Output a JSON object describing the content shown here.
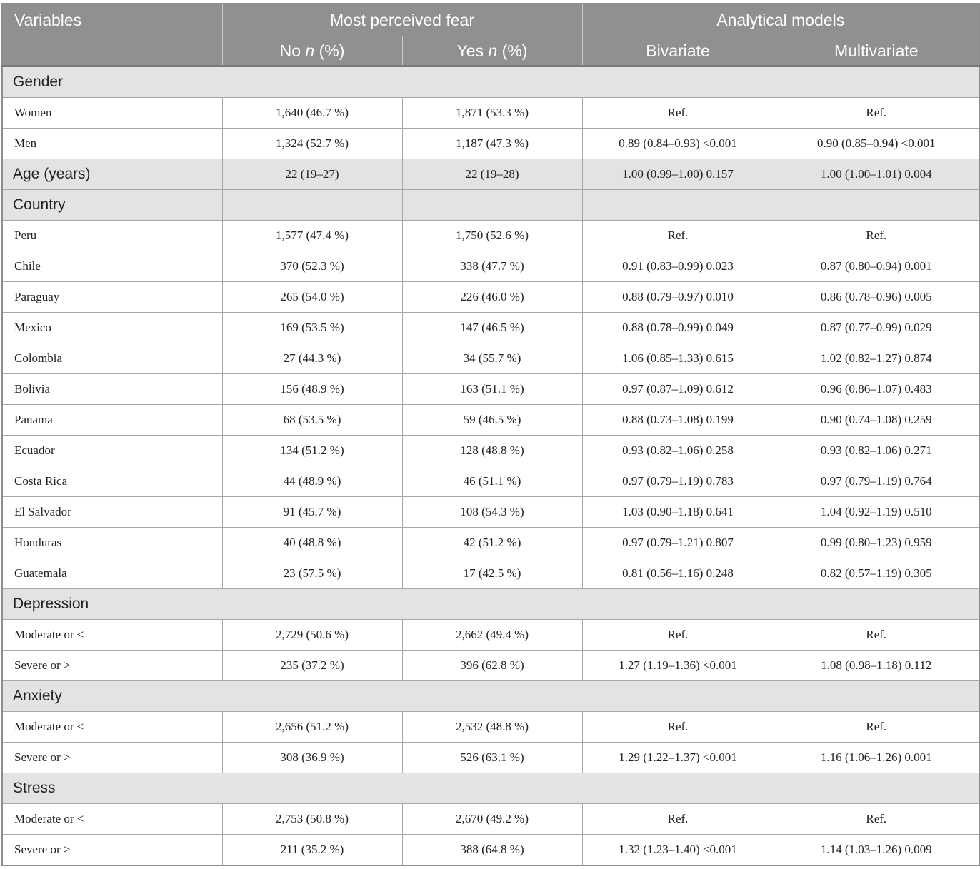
{
  "header": {
    "variables": "Variables",
    "most_perceived_fear": "Most perceived fear",
    "analytical_models": "Analytical models",
    "no_prefix": "No ",
    "yes_prefix": "Yes ",
    "n_italic": "n",
    "pct_suffix": " (%)",
    "bivariate": "Bivariate",
    "multivariate": "Multivariate"
  },
  "sections": {
    "gender": {
      "title": "Gender",
      "rows": [
        {
          "label": "Women",
          "no": "1,640 (46.7 %)",
          "yes": "1,871 (53.3 %)",
          "bivariate": "Ref.",
          "multivariate": "Ref."
        },
        {
          "label": "Men",
          "no": "1,324 (52.7 %)",
          "yes": "1,187 (47.3 %)",
          "bivariate": "0.89 (0.84–0.93) <0.001",
          "multivariate": "0.90 (0.85–0.94) <0.001"
        }
      ]
    },
    "age": {
      "label": "Age (years)",
      "no": "22 (19–27)",
      "yes": "22 (19–28)",
      "bivariate": "1.00 (0.99–1.00) 0.157",
      "multivariate": "1.00 (1.00–1.01) 0.004"
    },
    "country": {
      "title": "Country",
      "rows": [
        {
          "label": "Peru",
          "no": "1,577 (47.4 %)",
          "yes": "1,750 (52.6 %)",
          "bivariate": "Ref.",
          "multivariate": "Ref."
        },
        {
          "label": "Chile",
          "no": "370 (52.3 %)",
          "yes": "338 (47.7 %)",
          "bivariate": "0.91 (0.83–0.99) 0.023",
          "multivariate": "0.87 (0.80–0.94) 0.001"
        },
        {
          "label": "Paraguay",
          "no": "265 (54.0 %)",
          "yes": "226 (46.0 %)",
          "bivariate": "0.88 (0.79–0.97) 0.010",
          "multivariate": "0.86 (0.78–0.96) 0.005"
        },
        {
          "label": "Mexico",
          "no": "169 (53.5 %)",
          "yes": "147 (46.5 %)",
          "bivariate": "0.88 (0.78–0.99) 0.049",
          "multivariate": "0.87 (0.77–0.99) 0.029"
        },
        {
          "label": "Colombia",
          "no": "27 (44.3 %)",
          "yes": "34 (55.7 %)",
          "bivariate": "1.06 (0.85–1.33) 0.615",
          "multivariate": "1.02 (0.82–1.27) 0.874"
        },
        {
          "label": "Bolivia",
          "no": "156 (48.9 %)",
          "yes": "163 (51.1 %)",
          "bivariate": "0.97 (0.87–1.09) 0.612",
          "multivariate": "0.96 (0.86–1.07) 0.483"
        },
        {
          "label": "Panama",
          "no": "68 (53.5 %)",
          "yes": "59 (46.5 %)",
          "bivariate": "0.88 (0.73–1.08) 0.199",
          "multivariate": "0.90 (0.74–1.08) 0.259"
        },
        {
          "label": "Ecuador",
          "no": "134 (51.2 %)",
          "yes": "128 (48.8 %)",
          "bivariate": "0.93 (0.82–1.06) 0.258",
          "multivariate": "0.93 (0.82–1.06) 0.271"
        },
        {
          "label": "Costa Rica",
          "no": "44 (48.9 %)",
          "yes": "46 (51.1 %)",
          "bivariate": "0.97 (0.79–1.19) 0.783",
          "multivariate": "0.97 (0.79–1.19) 0.764"
        },
        {
          "label": "El Salvador",
          "no": "91 (45.7 %)",
          "yes": "108 (54.3 %)",
          "bivariate": "1.03 (0.90–1.18) 0.641",
          "multivariate": "1.04 (0.92–1.19) 0.510"
        },
        {
          "label": "Honduras",
          "no": "40 (48.8 %)",
          "yes": "42 (51.2 %)",
          "bivariate": "0.97 (0.79–1.21) 0.807",
          "multivariate": "0.99 (0.80–1.23) 0.959"
        },
        {
          "label": "Guatemala",
          "no": "23 (57.5 %)",
          "yes": "17 (42.5 %)",
          "bivariate": "0.81 (0.56–1.16) 0.248",
          "multivariate": "0.82 (0.57–1.19) 0.305"
        }
      ]
    },
    "depression": {
      "title": "Depression",
      "rows": [
        {
          "label": "Moderate or <",
          "no": "2,729 (50.6 %)",
          "yes": "2,662 (49.4 %)",
          "bivariate": "Ref.",
          "multivariate": "Ref."
        },
        {
          "label": "Severe or >",
          "no": "235 (37.2 %)",
          "yes": "396 (62.8 %)",
          "bivariate": "1.27 (1.19–1.36) <0.001",
          "multivariate": "1.08 (0.98–1.18) 0.112"
        }
      ]
    },
    "anxiety": {
      "title": "Anxiety",
      "rows": [
        {
          "label": "Moderate or <",
          "no": "2,656 (51.2 %)",
          "yes": "2,532 (48.8 %)",
          "bivariate": "Ref.",
          "multivariate": "Ref."
        },
        {
          "label": "Severe or >",
          "no": "308 (36.9 %)",
          "yes": "526 (63.1 %)",
          "bivariate": "1.29 (1.22–1.37) <0.001",
          "multivariate": "1.16 (1.06–1.26) 0.001"
        }
      ]
    },
    "stress": {
      "title": "Stress",
      "rows": [
        {
          "label": "Moderate or <",
          "no": "2,753 (50.8 %)",
          "yes": "2,670 (49.2 %)",
          "bivariate": "Ref.",
          "multivariate": "Ref."
        },
        {
          "label": "Severe or >",
          "no": "211 (35.2 %)",
          "yes": "388 (64.8 %)",
          "bivariate": "1.32 (1.23–1.40) <0.001",
          "multivariate": "1.14 (1.03–1.26) 0.009"
        }
      ]
    }
  }
}
